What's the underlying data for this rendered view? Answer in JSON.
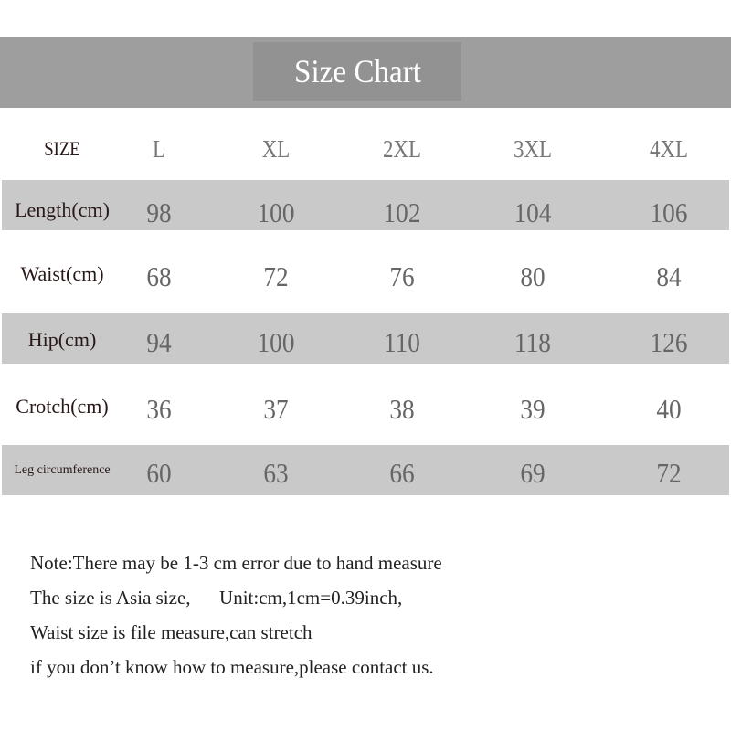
{
  "title": "Size Chart",
  "colors": {
    "banner": "#9e9e9e",
    "title_box": "#929292",
    "band": "#c9c9c9",
    "label_text": "#2a1818",
    "value_text": "#666666"
  },
  "table": {
    "headers": [
      "SIZE",
      "L",
      "XL",
      "2XL",
      "3XL",
      "4XL"
    ],
    "rows": [
      {
        "label": "Length(cm)",
        "values": [
          "98",
          "100",
          "102",
          "104",
          "106"
        ]
      },
      {
        "label": "Waist(cm)",
        "values": [
          "68",
          "72",
          "76",
          "80",
          "84"
        ]
      },
      {
        "label": "Hip(cm)",
        "values": [
          "94",
          "100",
          "110",
          "118",
          "126"
        ]
      },
      {
        "label": "Crotch(cm)",
        "values": [
          "36",
          "37",
          "38",
          "39",
          "40"
        ]
      },
      {
        "label": "Leg circumference",
        "values": [
          "60",
          "63",
          "66",
          "69",
          "72"
        ]
      }
    ]
  },
  "notes": [
    "Note:There may be 1-3 cm error due to hand measure",
    "The size is Asia size,      Unit:cm,1cm=0.39inch,",
    "Waist size is file measure,can stretch",
    "if you don’t know how to measure,please contact us."
  ]
}
